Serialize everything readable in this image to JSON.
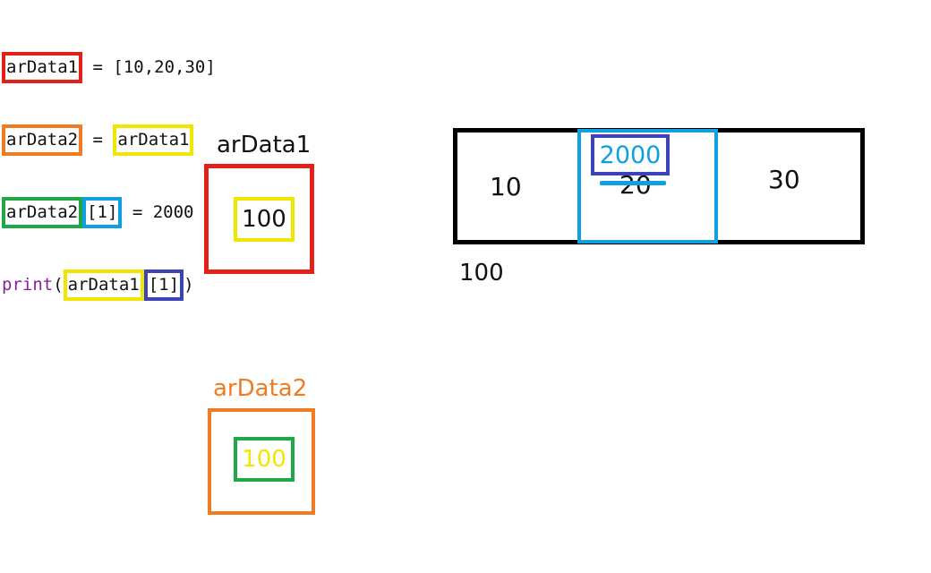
{
  "code": {
    "line1": {
      "var": "arData1",
      "rest": " = [10,20,30]"
    },
    "line2": {
      "var": "arData2",
      "eq": " = ",
      "ref": "arData1"
    },
    "line3": {
      "var": "arData2",
      "index": "[1]",
      "rest": " = 2000"
    },
    "line4": {
      "fn": "print",
      "open": "(",
      "ref": "arData1",
      "index": "[1]",
      "close": ")"
    }
  },
  "vars": {
    "arData1": {
      "label": "arData1",
      "value": "100"
    },
    "arData2": {
      "label": "arData2",
      "value": "100"
    }
  },
  "array": {
    "cells": [
      "10",
      "20",
      "30"
    ],
    "new_value": "2000",
    "address": "100"
  },
  "colors": {
    "red": "#e32119",
    "orange": "#f07b22",
    "yellow": "#f2e600",
    "green": "#1fa845",
    "cyan": "#0ea0e0",
    "navy": "#3c43b8"
  }
}
